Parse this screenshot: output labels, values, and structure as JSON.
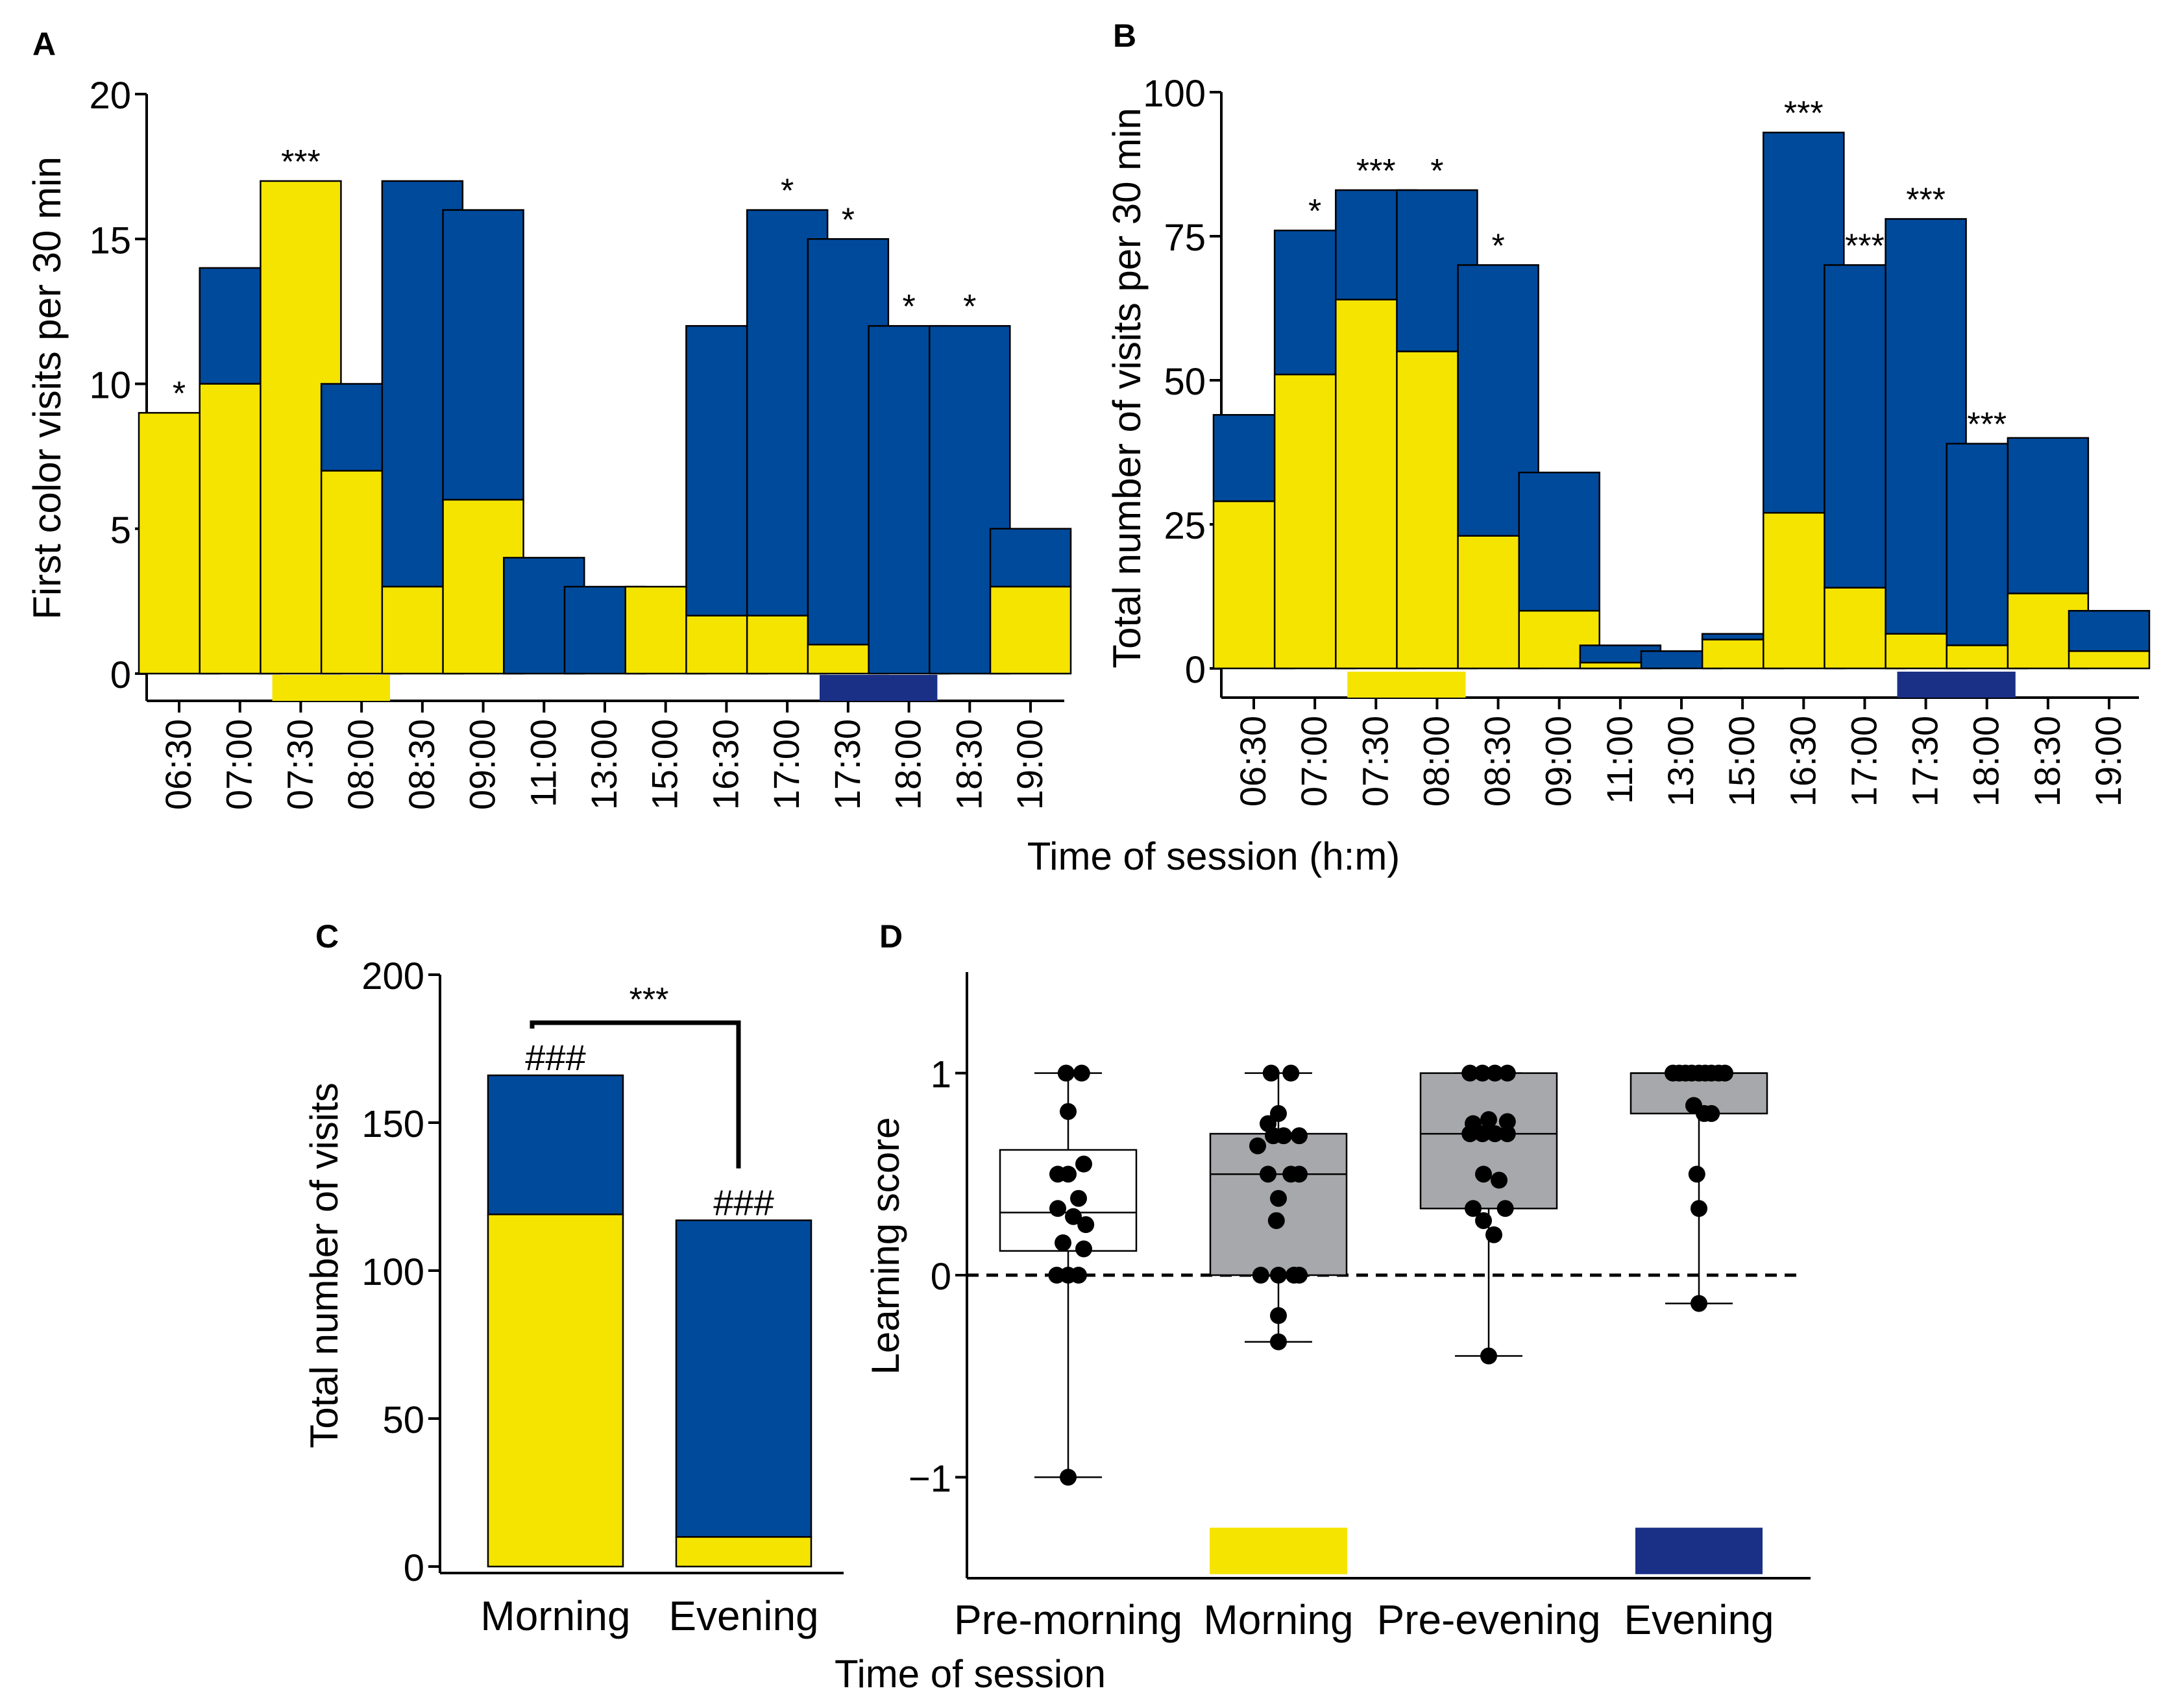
{
  "colors": {
    "yellow": "#f5e400",
    "blue": "#004a9c",
    "navy": "#1a2f86",
    "box_gray": "#a7a8ab",
    "box_white": "#ffffff"
  },
  "shared": {
    "time_xlabel": "Time of session (h:m)",
    "cd_xlabel": "Time of session"
  },
  "chart_data": [
    {
      "panel": "A",
      "type": "bar",
      "stacked": true,
      "ylabel": "First color visits per 30 min",
      "ylim": [
        0,
        20
      ],
      "yticks": [
        0,
        5,
        10,
        15,
        20
      ],
      "categories": [
        "06:30",
        "07:00",
        "07:30",
        "08:00",
        "08:30",
        "09:00",
        "11:00",
        "13:00",
        "15:00",
        "16:30",
        "17:00",
        "17:30",
        "18:00",
        "18:30",
        "19:00"
      ],
      "series": [
        {
          "name": "yellow",
          "values": [
            9,
            10,
            17,
            7,
            3,
            6,
            0,
            0,
            3,
            2,
            2,
            1,
            0,
            0,
            3
          ]
        },
        {
          "name": "blue",
          "values": [
            0,
            4,
            0,
            3,
            14,
            10,
            4,
            3,
            0,
            10,
            14,
            14,
            12,
            12,
            2
          ]
        }
      ],
      "stars": [
        "*",
        "",
        "***",
        "",
        "",
        "",
        "",
        "",
        "",
        "",
        "*",
        "*",
        "*",
        "*",
        ""
      ],
      "training_markers": [
        {
          "color": "yellow",
          "from": "07:30",
          "to": "08:00"
        },
        {
          "color": "navy",
          "from": "17:30",
          "to": "18:00"
        }
      ]
    },
    {
      "panel": "B",
      "type": "bar",
      "stacked": true,
      "ylabel": "Total number of visits per 30 min",
      "ylim": [
        0,
        100
      ],
      "yticks": [
        0,
        25,
        50,
        75,
        100
      ],
      "categories": [
        "06:30",
        "07:00",
        "07:30",
        "08:00",
        "08:30",
        "09:00",
        "11:00",
        "13:00",
        "15:00",
        "16:30",
        "17:00",
        "17:30",
        "18:00",
        "18:30",
        "19:00"
      ],
      "series": [
        {
          "name": "yellow",
          "values": [
            29,
            51,
            64,
            55,
            23,
            10,
            1,
            0,
            5,
            27,
            14,
            6,
            4,
            13,
            3
          ]
        },
        {
          "name": "blue",
          "values": [
            15,
            25,
            19,
            28,
            47,
            24,
            3,
            3,
            1,
            66,
            56,
            72,
            35,
            27,
            7
          ]
        }
      ],
      "stars": [
        "",
        "*",
        "***",
        "*",
        "*",
        "",
        "",
        "",
        "",
        "***",
        "***",
        "***",
        "***",
        "",
        ""
      ],
      "training_markers": [
        {
          "color": "yellow",
          "from": "07:30",
          "to": "08:00"
        },
        {
          "color": "navy",
          "from": "17:30",
          "to": "18:00"
        }
      ]
    },
    {
      "panel": "C",
      "type": "bar",
      "stacked": true,
      "ylabel": "Total number of visits",
      "ylim": [
        0,
        200
      ],
      "yticks": [
        0,
        50,
        100,
        150,
        200
      ],
      "categories": [
        "Morning",
        "Evening"
      ],
      "series": [
        {
          "name": "yellow",
          "values": [
            119,
            10
          ]
        },
        {
          "name": "blue",
          "values": [
            47,
            107
          ]
        }
      ],
      "labels": [
        "###",
        "###"
      ],
      "comparison": {
        "from": "Morning",
        "to": "Evening",
        "label": "***"
      }
    },
    {
      "panel": "D",
      "type": "box",
      "ylabel": "Learning score",
      "ylim": [
        -1.5,
        1.5
      ],
      "yticks": [
        -1,
        0,
        1
      ],
      "reference_line": 0,
      "categories": [
        "Pre-morning",
        "Morning",
        "Pre-evening",
        "Evening"
      ],
      "boxes": [
        {
          "q1": 0.12,
          "median": 0.31,
          "q3": 0.62,
          "whisker_low": -1.0,
          "whisker_high": 1.0,
          "fill": "box_white",
          "points": [
            [
              -0.02,
              1.0
            ],
            [
              0.13,
              1.0
            ],
            [
              0.0,
              0.81
            ],
            [
              0.15,
              0.55
            ],
            [
              -0.1,
              0.5
            ],
            [
              0.0,
              0.5
            ],
            [
              0.1,
              0.38
            ],
            [
              -0.1,
              0.33
            ],
            [
              0.05,
              0.29
            ],
            [
              0.17,
              0.25
            ],
            [
              -0.05,
              0.16
            ],
            [
              0.15,
              0.13
            ],
            [
              -0.11,
              0.0
            ],
            [
              0.0,
              0.0
            ],
            [
              0.1,
              0.0
            ],
            [
              0.0,
              -1.0
            ]
          ]
        },
        {
          "q1": 0.0,
          "median": 0.5,
          "q3": 0.7,
          "whisker_low": -0.33,
          "whisker_high": 1.0,
          "fill": "box_gray",
          "points": [
            [
              -0.07,
              1.0
            ],
            [
              0.12,
              1.0
            ],
            [
              -0.1,
              0.75
            ],
            [
              0.0,
              0.8
            ],
            [
              -0.05,
              0.69
            ],
            [
              0.05,
              0.69
            ],
            [
              0.2,
              0.69
            ],
            [
              -0.2,
              0.64
            ],
            [
              0.12,
              0.5
            ],
            [
              -0.1,
              0.5
            ],
            [
              0.2,
              0.5
            ],
            [
              0.0,
              0.38
            ],
            [
              -0.02,
              0.27
            ],
            [
              0.15,
              0.0
            ],
            [
              -0.17,
              0.0
            ],
            [
              0.0,
              0.0
            ],
            [
              0.2,
              0.0
            ],
            [
              0.0,
              -0.2
            ],
            [
              0.0,
              -0.33
            ]
          ]
        },
        {
          "q1": 0.33,
          "median": 0.7,
          "q3": 1.0,
          "whisker_low": -0.4,
          "whisker_high": 1.0,
          "fill": "box_gray",
          "points": [
            [
              -0.18,
              1.0
            ],
            [
              -0.06,
              1.0
            ],
            [
              0.06,
              1.0
            ],
            [
              0.18,
              1.0
            ],
            [
              -0.15,
              0.75
            ],
            [
              0.0,
              0.77
            ],
            [
              0.18,
              0.76
            ],
            [
              -0.18,
              0.7
            ],
            [
              -0.06,
              0.7
            ],
            [
              0.06,
              0.7
            ],
            [
              0.18,
              0.7
            ],
            [
              -0.05,
              0.5
            ],
            [
              0.1,
              0.47
            ],
            [
              -0.15,
              0.33
            ],
            [
              0.16,
              0.33
            ],
            [
              -0.05,
              0.27
            ],
            [
              0.05,
              0.2
            ],
            [
              0.0,
              -0.4
            ]
          ]
        },
        {
          "q1": 0.8,
          "median": 1.0,
          "q3": 1.0,
          "whisker_low": -0.14,
          "whisker_high": 1.0,
          "fill": "box_gray",
          "points": [
            [
              -0.25,
              1.0
            ],
            [
              -0.19,
              1.0
            ],
            [
              -0.13,
              1.0
            ],
            [
              -0.07,
              1.0
            ],
            [
              0.0,
              1.0
            ],
            [
              0.06,
              1.0
            ],
            [
              0.12,
              1.0
            ],
            [
              0.19,
              1.0
            ],
            [
              0.25,
              1.0
            ],
            [
              -0.05,
              0.84
            ],
            [
              0.05,
              0.8
            ],
            [
              0.12,
              0.8
            ],
            [
              -0.02,
              0.5
            ],
            [
              0.0,
              0.33
            ],
            [
              0.0,
              -0.14
            ]
          ]
        }
      ],
      "training_markers": [
        {
          "color": "yellow",
          "category": "Morning"
        },
        {
          "color": "navy",
          "category": "Evening"
        }
      ]
    }
  ]
}
